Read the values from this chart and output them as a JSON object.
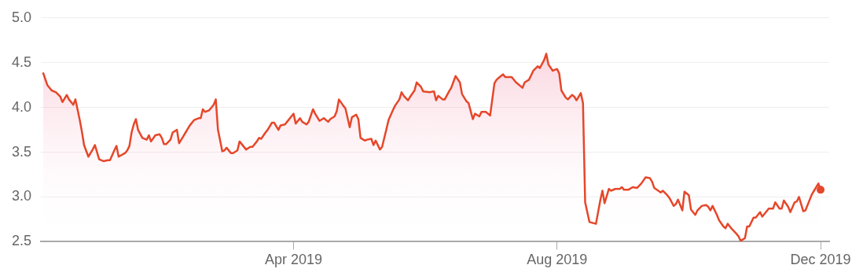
{
  "chart_data": {
    "type": "area",
    "x": [
      "2018-12-06",
      "2018-12-08",
      "2018-12-10",
      "2018-12-12",
      "2018-12-14",
      "2018-12-15",
      "2018-12-17",
      "2018-12-18",
      "2018-12-20",
      "2018-12-21",
      "2018-12-23",
      "2018-12-24",
      "2018-12-25",
      "2018-12-27",
      "2018-12-29",
      "2018-12-30",
      "2019-01-01",
      "2019-01-03",
      "2019-01-05",
      "2019-01-06",
      "2019-01-08",
      "2019-01-09",
      "2019-01-10",
      "2019-01-13",
      "2019-01-14",
      "2019-01-15",
      "2019-01-16",
      "2019-01-17",
      "2019-01-18",
      "2019-01-19",
      "2019-01-21",
      "2019-01-23",
      "2019-01-24",
      "2019-01-25",
      "2019-01-27",
      "2019-01-29",
      "2019-01-30",
      "2019-01-31",
      "2019-02-01",
      "2019-02-03",
      "2019-02-04",
      "2019-02-06",
      "2019-02-07",
      "2019-02-09",
      "2019-02-10",
      "2019-02-11",
      "2019-02-12",
      "2019-02-14",
      "2019-02-16",
      "2019-02-17",
      "2019-02-18",
      "2019-02-19",
      "2019-02-21",
      "2019-02-23",
      "2019-02-24",
      "2019-02-25",
      "2019-02-27",
      "2019-02-28",
      "2019-03-01",
      "2019-03-03",
      "2019-03-04",
      "2019-03-06",
      "2019-03-07",
      "2019-03-10",
      "2019-03-12",
      "2019-03-13",
      "2019-03-15",
      "2019-03-16",
      "2019-03-17",
      "2019-03-19",
      "2019-03-20",
      "2019-03-22",
      "2019-03-23",
      "2019-03-25",
      "2019-03-26",
      "2019-03-28",
      "2019-03-29",
      "2019-03-31",
      "2019-04-01",
      "2019-04-02",
      "2019-04-04",
      "2019-04-05",
      "2019-04-07",
      "2019-04-08",
      "2019-04-10",
      "2019-04-11",
      "2019-04-13",
      "2019-04-15",
      "2019-04-17",
      "2019-04-18",
      "2019-04-20",
      "2019-04-21",
      "2019-04-22",
      "2019-04-24",
      "2019-04-25",
      "2019-04-27",
      "2019-04-28",
      "2019-04-30",
      "2019-05-01",
      "2019-05-02",
      "2019-05-04",
      "2019-05-05",
      "2019-05-07",
      "2019-05-08",
      "2019-05-09",
      "2019-05-11",
      "2019-05-12",
      "2019-05-14",
      "2019-05-15",
      "2019-05-17",
      "2019-05-18",
      "2019-05-20",
      "2019-05-21",
      "2019-05-22",
      "2019-05-24",
      "2019-05-25",
      "2019-05-27",
      "2019-05-28",
      "2019-05-30",
      "2019-05-31",
      "2019-06-03",
      "2019-06-05",
      "2019-06-06",
      "2019-06-07",
      "2019-06-09",
      "2019-06-10",
      "2019-06-12",
      "2019-06-13",
      "2019-06-15",
      "2019-06-17",
      "2019-06-18",
      "2019-06-20",
      "2019-06-21",
      "2019-06-23",
      "2019-06-24",
      "2019-06-26",
      "2019-06-27",
      "2019-06-29",
      "2019-07-01",
      "2019-07-03",
      "2019-07-04",
      "2019-07-05",
      "2019-07-07",
      "2019-07-08",
      "2019-07-11",
      "2019-07-13",
      "2019-07-16",
      "2019-07-17",
      "2019-07-19",
      "2019-07-21",
      "2019-07-23",
      "2019-07-24",
      "2019-07-26",
      "2019-07-27",
      "2019-07-28",
      "2019-07-30",
      "2019-08-01",
      "2019-08-02",
      "2019-08-03",
      "2019-08-05",
      "2019-08-06",
      "2019-08-08",
      "2019-08-09",
      "2019-08-10",
      "2019-08-12",
      "2019-08-13",
      "2019-08-14",
      "2019-08-16",
      "2019-08-19",
      "2019-08-21",
      "2019-08-22",
      "2019-08-23",
      "2019-08-25",
      "2019-08-26",
      "2019-08-28",
      "2019-08-30",
      "2019-08-31",
      "2019-09-01",
      "2019-09-03",
      "2019-09-05",
      "2019-09-07",
      "2019-09-09",
      "2019-09-11",
      "2019-09-13",
      "2019-09-14",
      "2019-09-15",
      "2019-09-18",
      "2019-09-19",
      "2019-09-21",
      "2019-09-22",
      "2019-09-24",
      "2019-09-25",
      "2019-09-26",
      "2019-09-28",
      "2019-09-29",
      "2019-10-01",
      "2019-10-02",
      "2019-10-04",
      "2019-10-05",
      "2019-10-07",
      "2019-10-09",
      "2019-10-10",
      "2019-10-11",
      "2019-10-12",
      "2019-10-14",
      "2019-10-15",
      "2019-10-17",
      "2019-10-18",
      "2019-10-19",
      "2019-10-21",
      "2019-10-23",
      "2019-10-24",
      "2019-10-25",
      "2019-10-27",
      "2019-10-28",
      "2019-10-29",
      "2019-10-31",
      "2019-11-01",
      "2019-11-03",
      "2019-11-04",
      "2019-11-06",
      "2019-11-07",
      "2019-11-09",
      "2019-11-10",
      "2019-11-12",
      "2019-11-13",
      "2019-11-14",
      "2019-11-16",
      "2019-11-17",
      "2019-11-19",
      "2019-11-20",
      "2019-11-21",
      "2019-11-23",
      "2019-11-24",
      "2019-11-26",
      "2019-11-27",
      "2019-11-28",
      "2019-11-30",
      "2019-12-01"
    ],
    "series": [
      {
        "color": "#e5472a",
        "values": [
          4.39,
          4.25,
          4.19,
          4.17,
          4.12,
          4.06,
          4.14,
          4.09,
          4.03,
          4.09,
          3.86,
          3.73,
          3.58,
          3.45,
          3.53,
          3.58,
          3.42,
          3.4,
          3.41,
          3.41,
          3.52,
          3.57,
          3.45,
          3.49,
          3.52,
          3.57,
          3.72,
          3.81,
          3.87,
          3.75,
          3.66,
          3.64,
          3.69,
          3.62,
          3.69,
          3.7,
          3.66,
          3.59,
          3.59,
          3.64,
          3.72,
          3.75,
          3.6,
          3.68,
          3.72,
          3.76,
          3.8,
          3.86,
          3.88,
          3.88,
          3.98,
          3.95,
          3.97,
          4.03,
          4.09,
          3.75,
          3.51,
          3.52,
          3.55,
          3.49,
          3.49,
          3.52,
          3.62,
          3.53,
          3.56,
          3.56,
          3.62,
          3.66,
          3.65,
          3.72,
          3.75,
          3.83,
          3.83,
          3.75,
          3.8,
          3.81,
          3.84,
          3.9,
          3.93,
          3.82,
          3.88,
          3.84,
          3.81,
          3.84,
          3.98,
          3.93,
          3.85,
          3.88,
          3.84,
          3.87,
          3.9,
          3.96,
          4.09,
          4.02,
          3.99,
          3.78,
          3.89,
          3.92,
          3.87,
          3.66,
          3.63,
          3.64,
          3.65,
          3.58,
          3.63,
          3.53,
          3.56,
          3.76,
          3.86,
          3.97,
          4.02,
          4.09,
          4.17,
          4.13,
          4.08,
          4.12,
          4.19,
          4.28,
          4.23,
          4.18,
          4.17,
          4.18,
          4.08,
          4.13,
          4.09,
          4.09,
          4.18,
          4.22,
          4.35,
          4.28,
          4.15,
          4.07,
          4.05,
          3.87,
          3.93,
          3.9,
          3.95,
          3.95,
          3.91,
          4.27,
          4.31,
          4.33,
          4.37,
          4.34,
          4.34,
          4.28,
          4.22,
          4.28,
          4.31,
          4.41,
          4.46,
          4.44,
          4.53,
          4.6,
          4.48,
          4.41,
          4.43,
          4.38,
          4.19,
          4.11,
          4.09,
          4.14,
          4.12,
          4.08,
          4.16,
          4.05,
          2.94,
          2.72,
          2.7,
          2.96,
          3.07,
          2.93,
          3.09,
          3.07,
          3.09,
          3.09,
          3.11,
          3.08,
          3.08,
          3.11,
          3.1,
          3.15,
          3.22,
          3.21,
          3.17,
          3.1,
          3.05,
          3.07,
          3.02,
          2.99,
          2.9,
          2.92,
          2.97,
          2.85,
          3.06,
          3.02,
          2.86,
          2.8,
          2.85,
          2.9,
          2.91,
          2.89,
          2.85,
          2.9,
          2.8,
          2.74,
          2.67,
          2.65,
          2.7,
          2.64,
          2.59,
          2.56,
          2.51,
          2.54,
          2.67,
          2.67,
          2.77,
          2.77,
          2.83,
          2.78,
          2.84,
          2.87,
          2.87,
          2.94,
          2.87,
          2.87,
          2.96,
          2.89,
          2.83,
          2.94,
          2.95,
          3.0,
          2.84,
          2.85,
          2.97,
          3.03,
          3.07,
          3.15,
          3.08
        ]
      }
    ],
    "xlim": [
      "2018-12-05",
      "2019-12-05"
    ],
    "xticks": [
      {
        "value": "2019-04-01",
        "label": "Apr 2019"
      },
      {
        "value": "2019-08-01",
        "label": "Aug 2019"
      },
      {
        "value": "2019-12-01",
        "label": "Dec 2019"
      }
    ],
    "ylim": [
      2.5,
      5
    ],
    "yticks": [
      {
        "value": 2.5,
        "label": "2.5"
      },
      {
        "value": 3,
        "label": "3.0"
      },
      {
        "value": 3.5,
        "label": "3.5"
      },
      {
        "value": 4,
        "label": "4.0"
      },
      {
        "value": 4.5,
        "label": "4.5"
      },
      {
        "value": 5,
        "label": "5.0"
      }
    ],
    "grid": "y",
    "legend": false,
    "line_style": "solid"
  }
}
